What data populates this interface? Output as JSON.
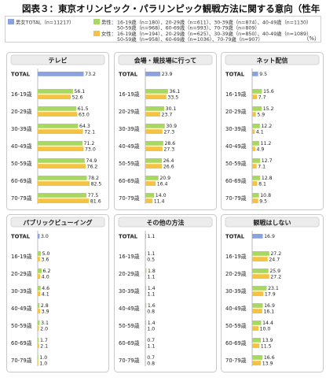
{
  "title": "図表３：東京オリンピック・パラリンピック観戦方法に関する意向（性年代別）",
  "unit": "（%）",
  "legend": {
    "total": "男女TOTAL（n=11217）",
    "male_label": "男性：",
    "male_line1": "16-19歳（n=180）、20-29歳（n=611）、30-39歳（n=874）、40-49歳（n=1130）",
    "male_line2": "50-59歳（n=968）、60-69歳（n=993）、70-79歳（n=809）",
    "female_label": "女性：",
    "female_line1": "16-19歳（n=194）、20-29歳（n=625）、30-39歳（n=850）、40-49歳（n=1089）",
    "female_line2": "50-59歳（n=958）、60-69歳（n=1036）、70-79歳（n=907）"
  },
  "colors": {
    "total": "#8aa3e0",
    "male": "#a8d862",
    "female": "#f5c242",
    "panel_border": "#c9c9c9",
    "header_bg": "#ececec"
  },
  "chart_data": [
    {
      "type": "bar",
      "title": "テレビ",
      "categories": [
        "TOTAL",
        "16-19歳",
        "20-29歳",
        "30-39歳",
        "40-49歳",
        "50-59歳",
        "60-69歳",
        "70-79歳"
      ],
      "series": [
        {
          "name": "男女TOTAL",
          "values": [
            73.2,
            null,
            null,
            null,
            null,
            null,
            null,
            null
          ]
        },
        {
          "name": "男性",
          "values": [
            null,
            56.1,
            61.5,
            64.3,
            71.2,
            74.9,
            78.2,
            77.5
          ]
        },
        {
          "name": "女性",
          "values": [
            null,
            52.6,
            63.0,
            72.1,
            73.0,
            76.2,
            82.5,
            81.6
          ]
        }
      ],
      "xlim": [
        0,
        100
      ]
    },
    {
      "type": "bar",
      "title": "会場・競技場に行って",
      "categories": [
        "TOTAL",
        "16-19歳",
        "20-29歳",
        "30-39歳",
        "40-49歳",
        "50-59歳",
        "60-69歳",
        "70-79歳"
      ],
      "series": [
        {
          "name": "男女TOTAL",
          "values": [
            23.9,
            null,
            null,
            null,
            null,
            null,
            null,
            null
          ]
        },
        {
          "name": "男性",
          "values": [
            null,
            36.1,
            30.1,
            30.9,
            28.6,
            26.4,
            20.9,
            14.0
          ]
        },
        {
          "name": "女性",
          "values": [
            null,
            33.5,
            23.7,
            27.3,
            27.3,
            26.6,
            16.4,
            11.4
          ]
        }
      ],
      "xlim": [
        0,
        100
      ]
    },
    {
      "type": "bar",
      "title": "ネット配信",
      "categories": [
        "TOTAL",
        "16-19歳",
        "20-29歳",
        "30-39歳",
        "40-49歳",
        "50-59歳",
        "60-69歳",
        "70-79歳"
      ],
      "series": [
        {
          "name": "男女TOTAL",
          "values": [
            9.5,
            null,
            null,
            null,
            null,
            null,
            null,
            null
          ]
        },
        {
          "name": "男性",
          "values": [
            null,
            15.6,
            15.2,
            12.2,
            11.2,
            12.7,
            12.8,
            10.8
          ]
        },
        {
          "name": "女性",
          "values": [
            null,
            7.7,
            5.9,
            4.1,
            4.9,
            7.1,
            8.1,
            9.5
          ]
        }
      ],
      "xlim": [
        0,
        100
      ]
    },
    {
      "type": "bar",
      "title": "パブリックビューイング",
      "categories": [
        "TOTAL",
        "16-19歳",
        "20-29歳",
        "30-39歳",
        "40-49歳",
        "50-59歳",
        "60-69歳",
        "70-79歳"
      ],
      "series": [
        {
          "name": "男女TOTAL",
          "values": [
            3.0,
            null,
            null,
            null,
            null,
            null,
            null,
            null
          ]
        },
        {
          "name": "男性",
          "values": [
            null,
            5.0,
            6.2,
            4.6,
            2.8,
            3.1,
            1.7,
            1.0
          ]
        },
        {
          "name": "女性",
          "values": [
            null,
            3.6,
            4.0,
            4.1,
            3.9,
            2.0,
            2.1,
            1.0
          ]
        }
      ],
      "xlim": [
        0,
        100
      ]
    },
    {
      "type": "bar",
      "title": "その他の方法",
      "categories": [
        "TOTAL",
        "16-19歳",
        "20-29歳",
        "30-39歳",
        "40-49歳",
        "50-59歳",
        "60-69歳",
        "70-79歳"
      ],
      "series": [
        {
          "name": "男女TOTAL",
          "values": [
            1.1,
            null,
            null,
            null,
            null,
            null,
            null,
            null
          ]
        },
        {
          "name": "男性",
          "values": [
            null,
            1.1,
            1.8,
            1.4,
            1.6,
            1.4,
            0.7,
            0.7
          ]
        },
        {
          "name": "女性",
          "values": [
            null,
            0.5,
            1.1,
            1.1,
            0.8,
            1.0,
            1.1,
            0.8
          ]
        }
      ],
      "xlim": [
        0,
        100
      ]
    },
    {
      "type": "bar",
      "title": "観戦はしない",
      "categories": [
        "TOTAL",
        "16-19歳",
        "20-29歳",
        "30-39歳",
        "40-49歳",
        "50-59歳",
        "60-69歳",
        "70-79歳"
      ],
      "series": [
        {
          "name": "男女TOTAL",
          "values": [
            16.9,
            null,
            null,
            null,
            null,
            null,
            null,
            null
          ]
        },
        {
          "name": "男性",
          "values": [
            null,
            27.2,
            25.9,
            23.1,
            16.9,
            14.4,
            13.9,
            16.6
          ]
        },
        {
          "name": "女性",
          "values": [
            null,
            24.7,
            27.2,
            17.9,
            16.1,
            10.0,
            11.5,
            13.9
          ]
        }
      ],
      "xlim": [
        0,
        100
      ]
    }
  ]
}
